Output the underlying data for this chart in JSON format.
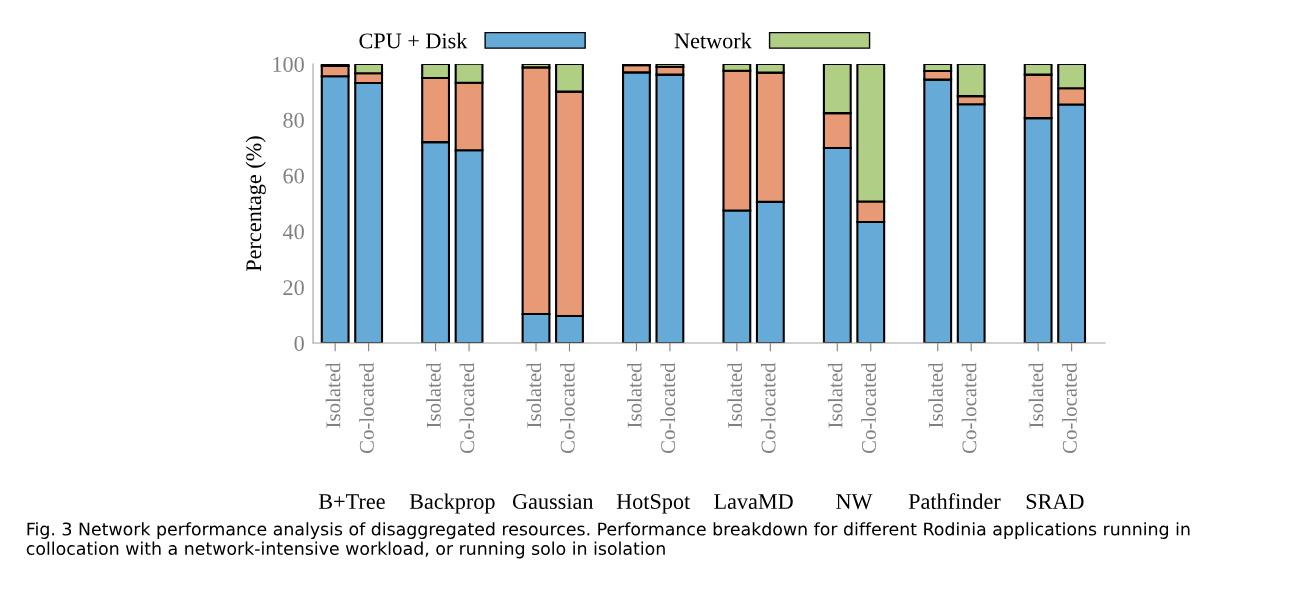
{
  "chart_data": {
    "type": "bar",
    "stacked": true,
    "ylabel": "Percentage (%)",
    "categories": [
      "Isolated",
      "Co-located",
      "Isolated",
      "Co-located",
      "Isolated",
      "Co-located",
      "Isolated",
      "Co-located",
      "Isolated",
      "Co-located",
      "Isolated",
      "Co-located",
      "Isolated",
      "Co-located",
      "Isolated",
      "Co-located"
    ],
    "series": [
      {
        "name": "CPU + Disk",
        "color": "#66aad7",
        "values": [
          95.6,
          93.2,
          72.0,
          69.1,
          10.4,
          9.7,
          97.0,
          96.2,
          47.5,
          50.6,
          69.9,
          43.4,
          94.4,
          85.6,
          80.6,
          85.5
        ]
      },
      {
        "color": "#e89a76",
        "values": [
          3.7,
          3.5,
          23.0,
          24.2,
          88.4,
          80.4,
          2.6,
          2.8,
          50.1,
          46.3,
          12.5,
          7.3,
          3.1,
          2.9,
          15.6,
          5.8
        ]
      },
      {
        "name": "Network",
        "color": "#b0cf84",
        "values": [
          0.7,
          3.3,
          5.0,
          6.8,
          1.2,
          9.9,
          0.4,
          1.0,
          2.4,
          3.1,
          17.6,
          49.3,
          2.5,
          11.5,
          3.8,
          8.7
        ]
      }
    ],
    "ylim": [
      0,
      100
    ],
    "yticks": [
      0,
      20,
      40,
      60,
      80,
      100
    ],
    "grid": false,
    "legend": "top",
    "annotations": [
      "B+Tree",
      "Backprop",
      "Gaussian",
      "HotSpot",
      "LavaMD",
      "NW",
      "Pathfinder",
      "SRAD",
      "Fig. 3 Network performance analysis of disaggregated resources. Performance breakdown for different Rodinia applications running in collocation with a network-intensive workload, or running solo in isolation"
    ]
  }
}
